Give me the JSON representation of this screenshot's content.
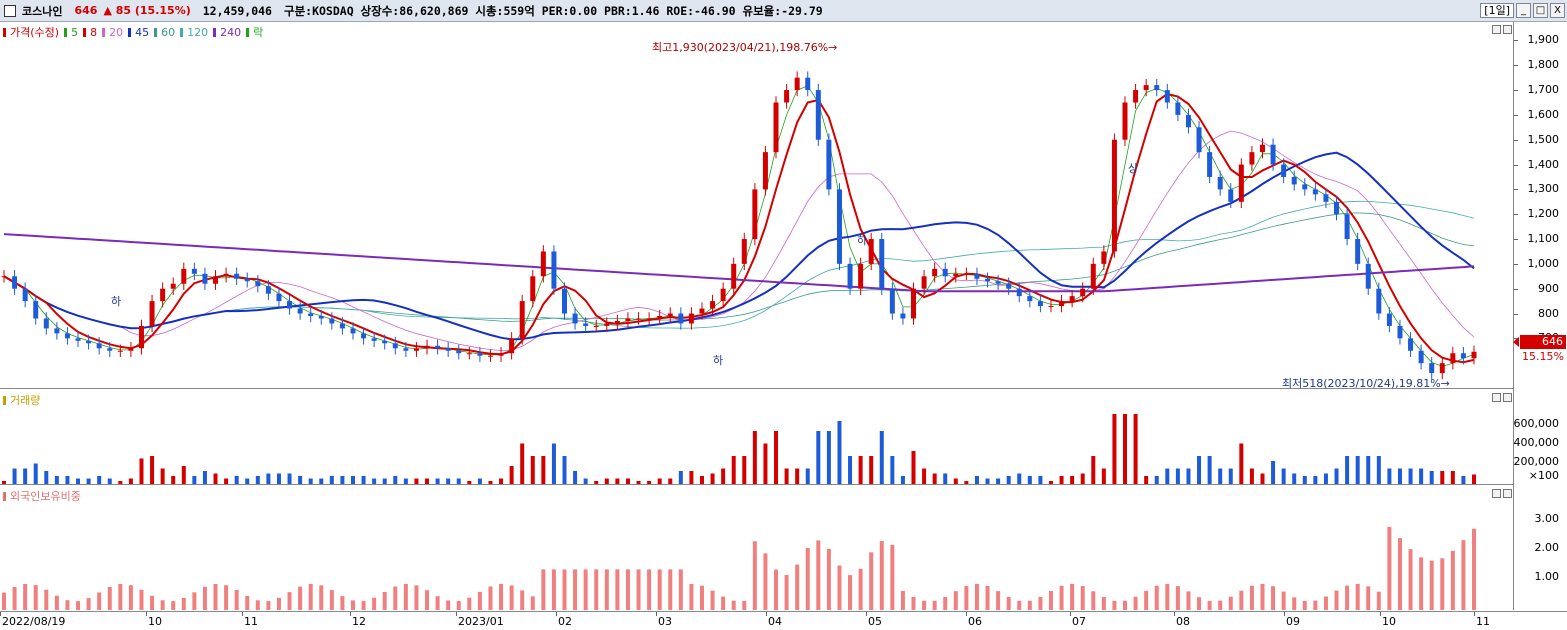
{
  "header": {
    "stock_name": "코스나인",
    "price": "646",
    "change": "▲ 85 (15.15%)",
    "volume": "12,459,046",
    "info": "구분:KOSDAQ 상장수:86,620,869 시총:559억 PER:0.00 PBR:1.46 ROE:-46.90 유보율:-29.79",
    "period": "[1일]",
    "btn_min": "_",
    "btn_restore": "□",
    "btn_close": "X"
  },
  "price_panel": {
    "legend": [
      {
        "label": "가격(수정)",
        "color": "#d40000"
      },
      {
        "label": "5",
        "color": "#22a022"
      },
      {
        "label": "8",
        "color": "#d40000"
      },
      {
        "label": "20",
        "color": "#cc66cc"
      },
      {
        "label": "45",
        "color": "#1530c0"
      },
      {
        "label": "60",
        "color": "#3c9a8c"
      },
      {
        "label": "120",
        "color": "#44aaaa"
      },
      {
        "label": "240",
        "color": "#7a2bb8"
      },
      {
        "label": "락",
        "color": "#22a022"
      }
    ],
    "y_labels": [
      "1,900",
      "1,800",
      "1,700",
      "1,600",
      "1,500",
      "1,400",
      "1,300",
      "1,200",
      "1,100",
      "1,000",
      "900",
      "800",
      "700"
    ],
    "current_price": "646",
    "current_pct": "15.15%",
    "high_annotation": "최고1,930(2023/04/21),198.76%→",
    "low_annotation": "최저518(2023/10/24),19.81%→",
    "marks": {
      "up": "상",
      "down": "하"
    }
  },
  "volume_panel": {
    "legend": "거래량",
    "legend_color": "#c8a000",
    "y_labels": [
      "600,000",
      "400,000",
      "200,000",
      "×100"
    ]
  },
  "foreign_panel": {
    "legend": "외국인보유비중",
    "legend_color": "#e07070",
    "y_labels": [
      "3.00",
      "2.00",
      "1.00"
    ]
  },
  "x_axis": {
    "labels": [
      "2022/08/19",
      "10",
      "11",
      "12",
      "2023/01",
      "02",
      "03",
      "04",
      "05",
      "06",
      "07",
      "08",
      "09",
      "10",
      "11"
    ]
  },
  "colors": {
    "up": "#d40000",
    "down": "#1d5bd8",
    "foreign_bar": "#f08080"
  },
  "chart_data": {
    "type": "candlestick",
    "title": "",
    "ylim": [
      500,
      1950
    ],
    "series": [
      {
        "name": "가격(수정)",
        "close_approx": [
          950,
          900,
          850,
          780,
          740,
          720,
          700,
          690,
          680,
          660,
          650,
          650,
          660,
          750,
          850,
          900,
          920,
          980,
          960,
          920,
          950,
          960,
          940,
          930,
          910,
          880,
          850,
          820,
          800,
          790,
          780,
          760,
          740,
          720,
          700,
          690,
          680,
          660,
          650,
          660,
          670,
          660,
          650,
          640,
          640,
          630,
          630,
          640,
          700,
          850,
          950,
          1050,
          900,
          800,
          760,
          750,
          750,
          760,
          770,
          780,
          780,
          780,
          790,
          800,
          760,
          800,
          820,
          850,
          900,
          1000,
          1100,
          1300,
          1450,
          1650,
          1700,
          1750,
          1700,
          1500,
          1300,
          1000,
          900,
          1000,
          1100,
          900,
          800,
          780,
          900,
          950,
          980,
          950,
          960,
          960,
          940,
          930,
          920,
          900,
          870,
          850,
          830,
          830,
          850,
          870,
          900,
          1000,
          1050,
          1500,
          1650,
          1700,
          1720,
          1700,
          1650,
          1600,
          1550,
          1450,
          1350,
          1300,
          1250,
          1400,
          1450,
          1480,
          1400,
          1350,
          1320,
          1300,
          1280,
          1250,
          1200,
          1100,
          1000,
          900,
          800,
          750,
          700,
          650,
          600,
          560,
          600,
          640,
          620,
          646
        ]
      }
    ],
    "moving_averages": [
      "5",
      "8",
      "20",
      "45",
      "60",
      "120",
      "240"
    ],
    "high": {
      "value": 1930,
      "date": "2023/04/21",
      "pct": "198.76%"
    },
    "low": {
      "value": 518,
      "date": "2023/10/24",
      "pct": "19.81%"
    }
  }
}
